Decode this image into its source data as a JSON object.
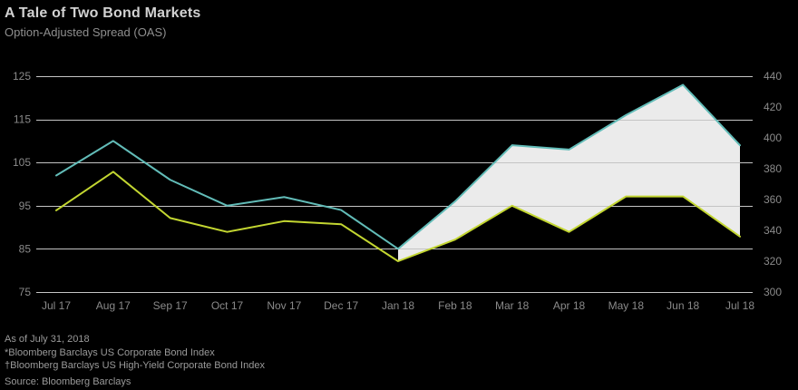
{
  "header": {
    "title": "A Tale of Two Bond Markets",
    "subtitle": "Option-Adjusted Spread (OAS)"
  },
  "footnotes": [
    "As of July 31, 2018",
    "*Bloomberg Barclays US Corporate Bond Index",
    "†Bloomberg Barclays US High-Yield Corporate Bond Index",
    "Source: Bloomberg Barclays"
  ],
  "colors": {
    "background": "#000000",
    "title": "#d2d2d2",
    "subtitle": "#8f8f8f",
    "axis_text": "#8a8a8a",
    "grid": "#c4c4c4",
    "corporate_line": "#62bcb8",
    "high_yield_line": "#c3d631",
    "spread_band": "#ebebeb"
  },
  "chart_data": {
    "type": "line",
    "title": "A Tale of Two Bond Markets",
    "subtitle": "Option-Adjusted Spread (OAS)",
    "categories": [
      "Jul 17",
      "Aug 17",
      "Sep 17",
      "Oct 17",
      "Nov 17",
      "Dec 17",
      "Jan 18",
      "Feb 18",
      "Mar 18",
      "Apr 18",
      "May 18",
      "Jun 18",
      "Jul 18"
    ],
    "left_axis": {
      "ticks": [
        75,
        85,
        95,
        105,
        115,
        125
      ],
      "range": [
        75,
        125
      ]
    },
    "right_axis": {
      "ticks": [
        300,
        320,
        340,
        360,
        380,
        400,
        420,
        440
      ],
      "range": [
        300,
        440
      ]
    },
    "series": [
      {
        "name": "US Corporate Bond Index*",
        "axis": "left",
        "color": "#62bcb8",
        "values": [
          102,
          110,
          101,
          95,
          97,
          94,
          85,
          96,
          109,
          108,
          116,
          123,
          109
        ]
      },
      {
        "name": "US High-Yield Corporate Bond Index†",
        "axis": "right",
        "color": "#c3d631",
        "values": [
          353,
          378,
          348,
          339,
          346,
          344,
          320,
          334,
          356,
          339,
          362,
          362,
          336
        ]
      }
    ],
    "band_fill": {
      "from_index": 6,
      "color": "#ebebeb"
    },
    "grid": true,
    "legend": "none"
  }
}
